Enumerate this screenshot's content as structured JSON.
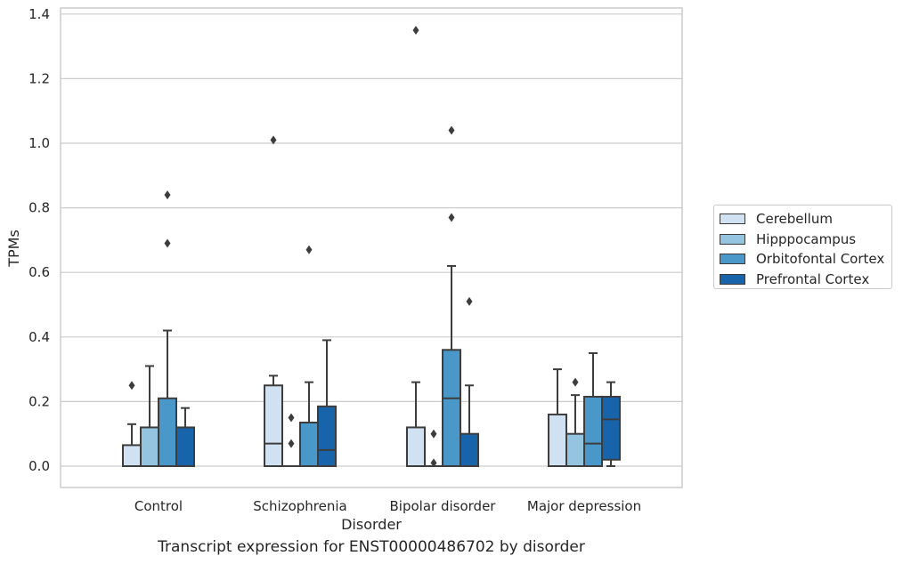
{
  "chart_data": {
    "type": "box",
    "title": "",
    "caption": "Transcript expression for ENST00000486702 by disorder",
    "xlabel": "Disorder",
    "ylabel": "TPMs",
    "ylim": [
      -0.065,
      1.42
    ],
    "yticks": [
      "0.0",
      "0.2",
      "0.4",
      "0.6",
      "0.8",
      "1.0",
      "1.2",
      "1.4"
    ],
    "grid": true,
    "legend_position": "right",
    "categories": [
      "Control",
      "Schizophrenia",
      "Bipolar disorder",
      "Major depression"
    ],
    "series": [
      {
        "name": "Cerebellum",
        "color": "#d0e1f2",
        "boxes": [
          {
            "whisker_low": 0.0,
            "q1": 0.0,
            "median": 0.0,
            "q3": 0.065,
            "whisker_high": 0.13,
            "outliers": [
              0.25
            ]
          },
          {
            "whisker_low": 0.0,
            "q1": 0.0,
            "median": 0.07,
            "q3": 0.25,
            "whisker_high": 0.28,
            "outliers": [
              1.01
            ]
          },
          {
            "whisker_low": 0.0,
            "q1": 0.0,
            "median": 0.0,
            "q3": 0.12,
            "whisker_high": 0.26,
            "outliers": [
              1.35
            ]
          },
          {
            "whisker_low": 0.0,
            "q1": 0.0,
            "median": 0.0,
            "q3": 0.16,
            "whisker_high": 0.3,
            "outliers": []
          }
        ]
      },
      {
        "name": "Hipppocampus",
        "color": "#94c4df",
        "boxes": [
          {
            "whisker_low": 0.0,
            "q1": 0.0,
            "median": 0.0,
            "q3": 0.12,
            "whisker_high": 0.31,
            "outliers": []
          },
          {
            "whisker_low": 0.0,
            "q1": 0.0,
            "median": 0.0,
            "q3": 0.0,
            "whisker_high": 0.0,
            "outliers": [
              0.15,
              0.07
            ]
          },
          {
            "whisker_low": 0.0,
            "q1": 0.0,
            "median": 0.0,
            "q3": 0.0,
            "whisker_high": 0.0,
            "outliers": [
              0.1,
              0.01
            ]
          },
          {
            "whisker_low": 0.0,
            "q1": 0.0,
            "median": 0.0,
            "q3": 0.1,
            "whisker_high": 0.22,
            "outliers": [
              0.26
            ]
          }
        ]
      },
      {
        "name": "Orbitofontal Cortex",
        "color": "#4a98c9",
        "boxes": [
          {
            "whisker_low": 0.0,
            "q1": 0.0,
            "median": 0.0,
            "q3": 0.21,
            "whisker_high": 0.42,
            "outliers": [
              0.69,
              0.84
            ]
          },
          {
            "whisker_low": 0.0,
            "q1": 0.0,
            "median": 0.0,
            "q3": 0.135,
            "whisker_high": 0.26,
            "outliers": [
              0.67
            ]
          },
          {
            "whisker_low": 0.0,
            "q1": 0.0,
            "median": 0.21,
            "q3": 0.36,
            "whisker_high": 0.62,
            "outliers": [
              0.77,
              1.04
            ]
          },
          {
            "whisker_low": 0.0,
            "q1": 0.0,
            "median": 0.07,
            "q3": 0.215,
            "whisker_high": 0.35,
            "outliers": []
          }
        ]
      },
      {
        "name": "Prefrontal Cortex",
        "color": "#1764ab",
        "boxes": [
          {
            "whisker_low": 0.0,
            "q1": 0.0,
            "median": 0.0,
            "q3": 0.12,
            "whisker_high": 0.18,
            "outliers": []
          },
          {
            "whisker_low": 0.0,
            "q1": 0.0,
            "median": 0.05,
            "q3": 0.185,
            "whisker_high": 0.39,
            "outliers": []
          },
          {
            "whisker_low": 0.0,
            "q1": 0.0,
            "median": 0.0,
            "q3": 0.1,
            "whisker_high": 0.25,
            "outliers": [
              0.51
            ]
          },
          {
            "whisker_low": 0.0,
            "q1": 0.02,
            "median": 0.145,
            "q3": 0.215,
            "whisker_high": 0.26,
            "outliers": []
          }
        ]
      }
    ]
  }
}
